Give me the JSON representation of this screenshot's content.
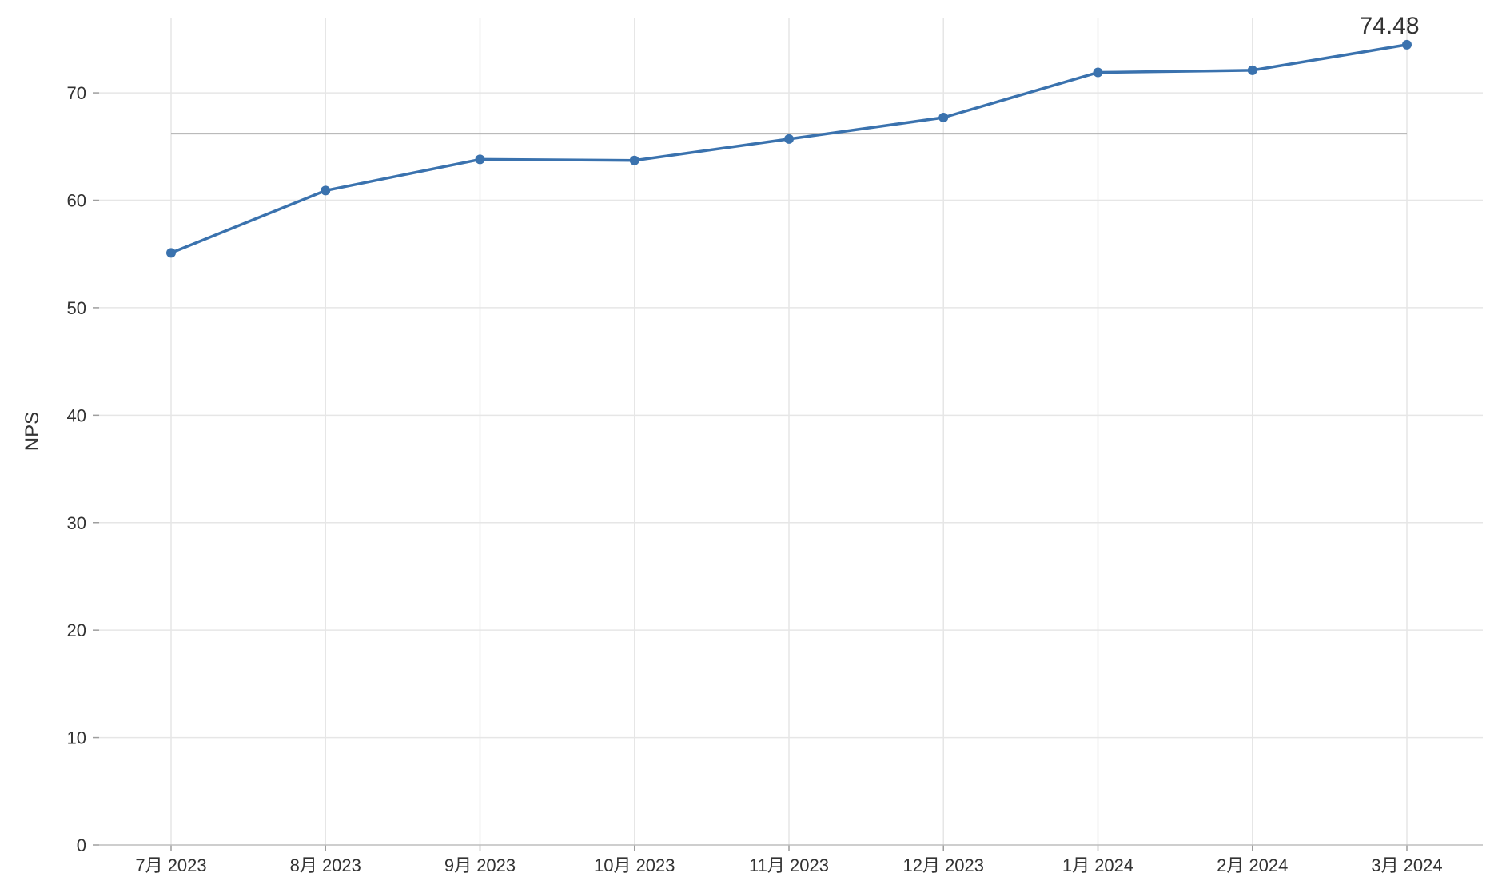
{
  "chart_data": {
    "type": "line",
    "title": "",
    "xlabel": "",
    "ylabel": "NPS",
    "ylim": [
      0,
      77
    ],
    "yticks": [
      0,
      10,
      20,
      30,
      40,
      50,
      60,
      70
    ],
    "categories": [
      "7月 2023",
      "8月 2023",
      "9月 2023",
      "10月 2023",
      "11月 2023",
      "12月 2023",
      "1月 2024",
      "2月 2024",
      "3月 2024"
    ],
    "series": [
      {
        "values": [
          55.1,
          60.9,
          63.8,
          63.7,
          65.7,
          67.7,
          71.9,
          72.1,
          74.48
        ],
        "color": "#3a72ae"
      }
    ],
    "reference_line": {
      "value": 66.2,
      "color": "#b0b0b0"
    },
    "annotations": [
      {
        "category_index": 8,
        "text": "74.48"
      }
    ],
    "grid": true,
    "legend": "none"
  }
}
